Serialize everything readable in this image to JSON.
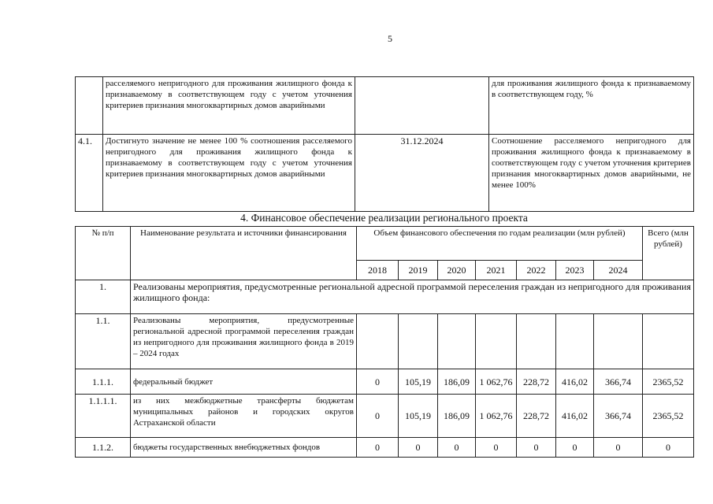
{
  "page_number": "5",
  "table_results": {
    "rows": [
      {
        "num": "",
        "result": "расселяемого непригодного для проживания жилищного фонда к признаваемому в соответствующем году с учетом уточнения критериев признания многоквартирных домов аварийными",
        "date": "",
        "description": "для проживания жилищного фонда к признаваемому в соответствующем году, %"
      },
      {
        "num": "4.1.",
        "result": "Достигнуто значение не менее 100 % соотношения расселяемого непригодного для проживания жилищного фонда к признаваемому в соответствующем году с учетом уточнения критериев признания многоквартирных домов аварийными",
        "date": "31.12.2024",
        "description": "Соотношение расселяемого непригодного для проживания жилищного фонда к признаваемому в соответствующем году с учетом уточнения критериев признания многоквартирных домов аварийными, не менее 100%"
      }
    ]
  },
  "section_heading": "4. Финансовое обеспечение реализации регионального проекта",
  "finance_table": {
    "headers": {
      "num": "№ п/п",
      "name": "Наименование результата и источники финансирования",
      "volume": "Объем финансового обеспечения по годам реализации (млн рублей)",
      "total": "Всего (млн рублей)",
      "years": [
        "2018",
        "2019",
        "2020",
        "2021",
        "2022",
        "2023",
        "2024"
      ]
    },
    "row_1": {
      "num": "1.",
      "text": "Реализованы мероприятия, предусмотренные региональной адресной программой переселения граждан из непригодного для проживания жилищного фонда:"
    },
    "rows": [
      {
        "num": "1.1.",
        "name": "Реализованы мероприятия, предусмотренные региональной адресной программой переселения граждан из непригодного для проживания жилищного фонда в 2019 – 2024 годах",
        "values": [
          "",
          "",
          "",
          "",
          "",
          "",
          ""
        ],
        "total": ""
      },
      {
        "num": "1.1.1.",
        "name": "федеральный бюджет",
        "values": [
          "0",
          "105,19",
          "186,09",
          "1 062,76",
          "228,72",
          "416,02",
          "366,74"
        ],
        "total": "2365,52"
      },
      {
        "num": "1.1.1.1.",
        "name": "из них межбюджетные трансферты бюджетам муниципальных районов и городских округов Астраханской области",
        "values": [
          "0",
          "105,19",
          "186,09",
          "1 062,76",
          "228,72",
          "416,02",
          "366,74"
        ],
        "total": "2365,52"
      },
      {
        "num": "1.1.2.",
        "name": "бюджеты государственных внебюджетных фондов",
        "values": [
          "0",
          "0",
          "0",
          "0",
          "0",
          "0",
          "0"
        ],
        "total": "0"
      }
    ]
  }
}
